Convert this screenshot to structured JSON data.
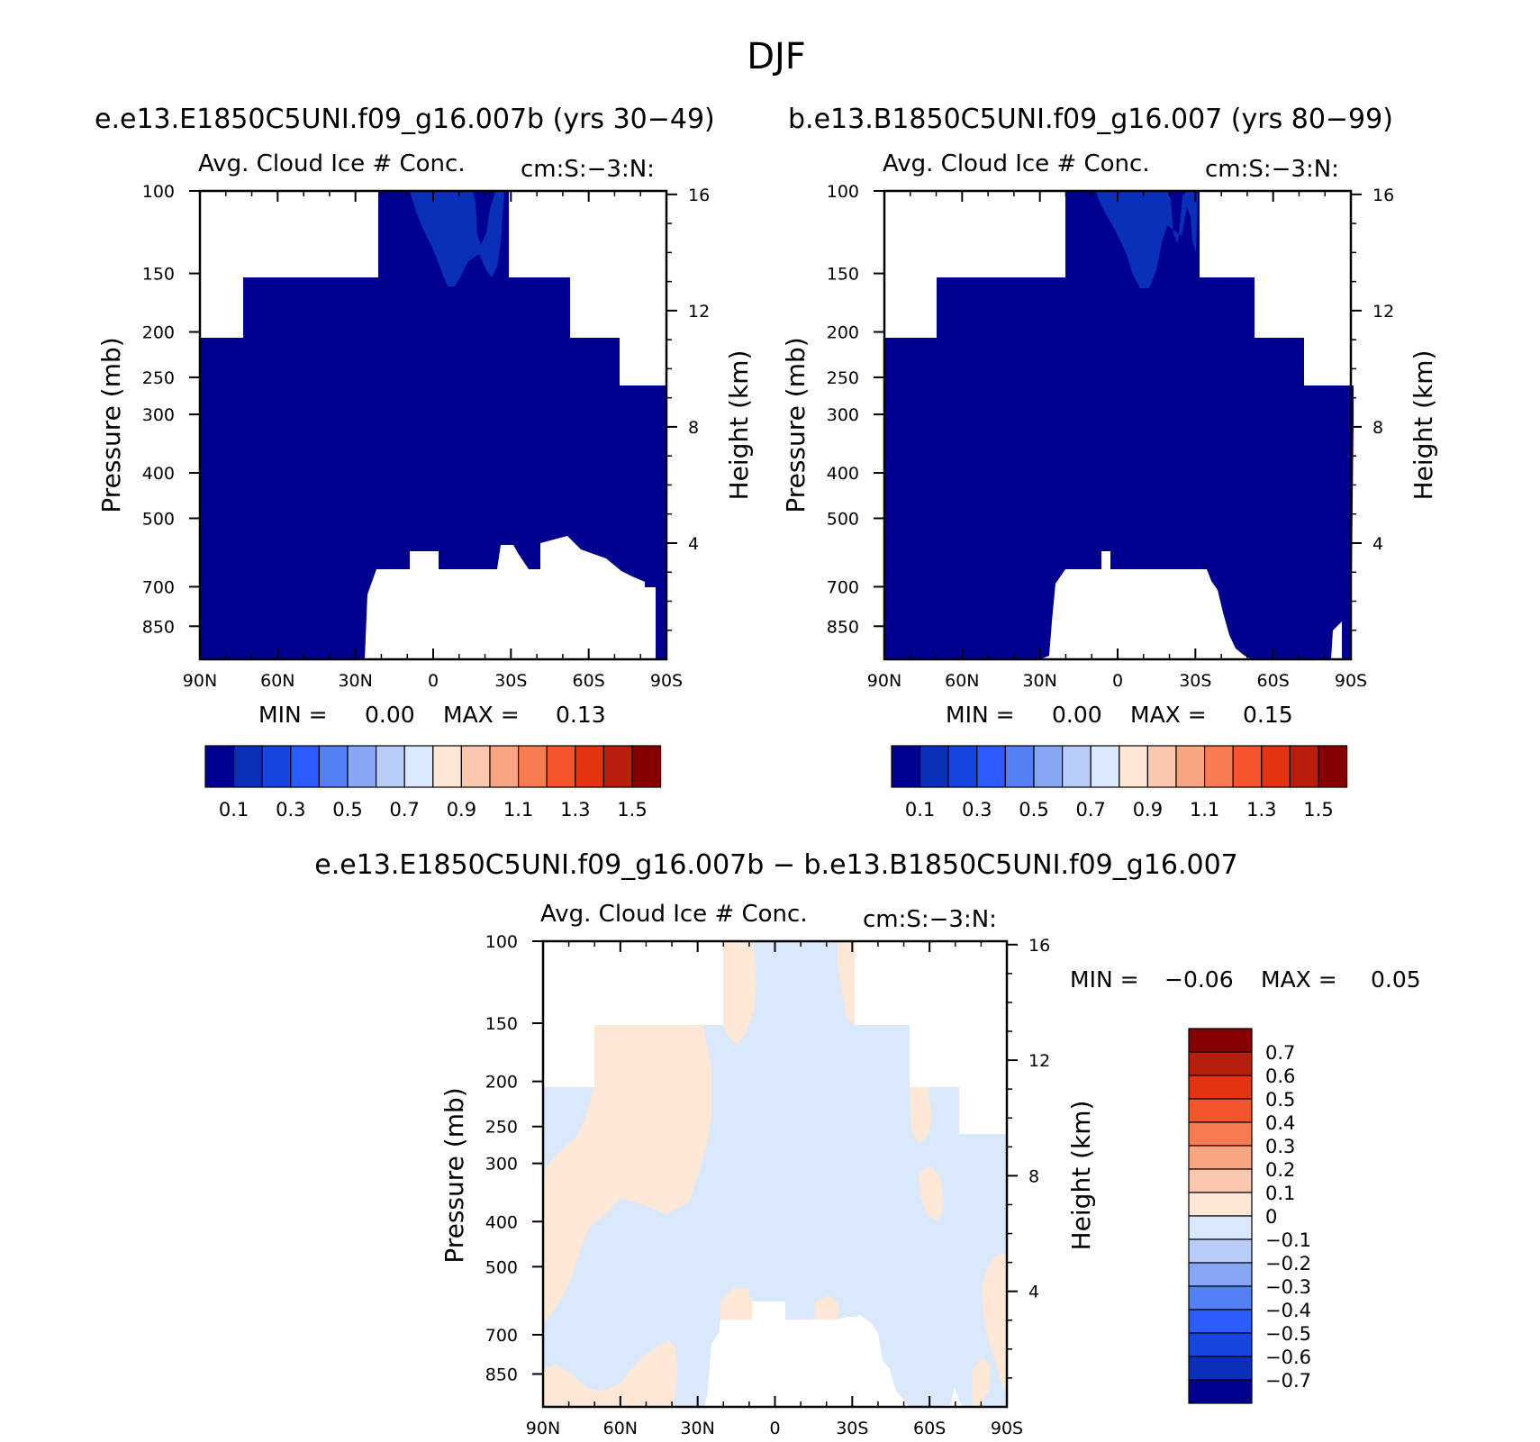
{
  "figure": {
    "season": "DJF",
    "header_left": "e.e13.E1850C5UNI.f09_g16.007b (yrs 30−49)",
    "header_right": "b.e13.B1850C5UNI.f09_g16.007 (yrs 80−99)",
    "diff_title": "e.e13.E1850C5UNI.f09_g16.007b − b.e13.B1850C5UNI.f09_g16.007"
  },
  "chart_data": [
    {
      "type": "heatmap",
      "panel": "left",
      "title": "Avg. Cloud Ice # Conc.",
      "units": "cm:S:−3:N:",
      "xlabel": "",
      "ylabel": "Pressure (mb)",
      "y2label": "Height (km)",
      "x_ticks": [
        "90N",
        "60N",
        "30N",
        "0",
        "30S",
        "60S",
        "90S"
      ],
      "y_ticks": [
        "100",
        "150",
        "200",
        "250",
        "300",
        "400",
        "500",
        "700",
        "850"
      ],
      "y2_ticks": [
        "16",
        "12",
        "8",
        "4"
      ],
      "min_label": "MIN =",
      "min_value": "0.00",
      "max_label": "MAX =",
      "max_value": "0.13",
      "colorbar_labels": [
        "0.1",
        "0.3",
        "0.5",
        "0.7",
        "0.9",
        "1.1",
        "1.3",
        "1.5"
      ],
      "colors": [
        "#000090",
        "#0a2fb8",
        "#1645e0",
        "#2a5cff",
        "#5480f5",
        "#86a8f4",
        "#b7ccf7",
        "#d9e8fb",
        "#fde7d6",
        "#fbc7ae",
        "#f8a582",
        "#f77c50",
        "#f4552b",
        "#e43310",
        "#b71e0b",
        "#850000"
      ]
    },
    {
      "type": "heatmap",
      "panel": "right",
      "title": "Avg. Cloud Ice # Conc.",
      "units": "cm:S:−3:N:",
      "xlabel": "",
      "ylabel": "Pressure (mb)",
      "y2label": "Height (km)",
      "x_ticks": [
        "90N",
        "60N",
        "30N",
        "0",
        "30S",
        "60S",
        "90S"
      ],
      "y_ticks": [
        "100",
        "150",
        "200",
        "250",
        "300",
        "400",
        "500",
        "700",
        "850"
      ],
      "y2_ticks": [
        "16",
        "12",
        "8",
        "4"
      ],
      "min_label": "MIN =",
      "min_value": "0.00",
      "max_label": "MAX =",
      "max_value": "0.15",
      "colorbar_labels": [
        "0.1",
        "0.3",
        "0.5",
        "0.7",
        "0.9",
        "1.1",
        "1.3",
        "1.5"
      ],
      "colors": [
        "#000090",
        "#0a2fb8",
        "#1645e0",
        "#2a5cff",
        "#5480f5",
        "#86a8f4",
        "#b7ccf7",
        "#d9e8fb",
        "#fde7d6",
        "#fbc7ae",
        "#f8a582",
        "#f77c50",
        "#f4552b",
        "#e43310",
        "#b71e0b",
        "#850000"
      ]
    },
    {
      "type": "heatmap",
      "panel": "difference",
      "title": "Avg. Cloud Ice # Conc.",
      "units": "cm:S:−3:N:",
      "xlabel": "",
      "ylabel": "Pressure (mb)",
      "y2label": "Height (km)",
      "x_ticks": [
        "90N",
        "60N",
        "30N",
        "0",
        "30S",
        "60S",
        "90S"
      ],
      "y_ticks": [
        "100",
        "150",
        "200",
        "250",
        "300",
        "400",
        "500",
        "700",
        "850"
      ],
      "y2_ticks": [
        "16",
        "12",
        "8",
        "4"
      ],
      "min_label": "MIN =",
      "min_value": "−0.06",
      "max_label": "MAX =",
      "max_value": "0.05",
      "colorbar_labels": [
        "0.7",
        "0.6",
        "0.5",
        "0.4",
        "0.3",
        "0.2",
        "0.1",
        "0",
        "−0.1",
        "−0.2",
        "−0.3",
        "−0.4",
        "−0.5",
        "−0.6",
        "−0.7"
      ],
      "colors": [
        "#850000",
        "#b71e0b",
        "#e43310",
        "#f4552b",
        "#f77c50",
        "#f8a582",
        "#fbc7ae",
        "#fde7d6",
        "#d9e8fb",
        "#b7ccf7",
        "#86a8f4",
        "#5480f5",
        "#2a5cff",
        "#1645e0",
        "#0a2fb8",
        "#000090"
      ]
    }
  ]
}
